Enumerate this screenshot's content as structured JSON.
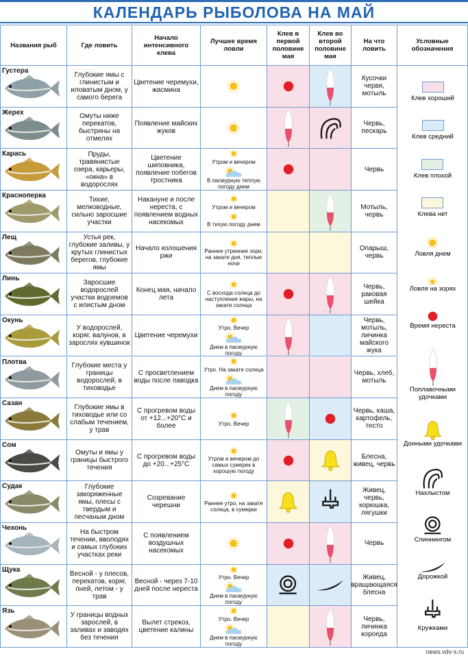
{
  "header": {
    "title": "КАЛЕНДАРЬ РЫБОЛОВА НА МАЙ"
  },
  "table": {
    "columns": [
      "Названия рыб",
      "Где ловить",
      "Начало интенсивного клева",
      "Лучшее время ловли",
      "Клев в первой половине мая",
      "Клев во второй половине мая",
      "На что ловить",
      "Условные обозначения"
    ],
    "rows": [
      {
        "name": "Густера",
        "where": "Глубокие ямы с глинистым и иловатым дном, у самого берега",
        "start": "Цветение черемухи, жасмина",
        "best": [
          {
            "icon": "sun"
          }
        ],
        "first": {
          "color": "#f9dfe8",
          "icon": "dot"
        },
        "second": {
          "color": "#dcebf8",
          "icon": "float"
        },
        "bait": "Кусочки червя, мотыль"
      },
      {
        "name": "Жерех",
        "where": "Омуты ниже перекатов, быстрины на отмелях",
        "start": "Появление майских жуков",
        "best": [
          {
            "icon": "sun"
          }
        ],
        "first": {
          "color": "#f9dfe8",
          "icon": "float"
        },
        "second": {
          "color": "#f9dfe8",
          "icon": "fly"
        },
        "bait": "Червь, пескарь"
      },
      {
        "name": "Карась",
        "where": "Пруды, травянистые озера, карьеры, «окна» в водорослях",
        "start": "Цветение шиповника, появление побегов тростника",
        "best": [
          {
            "icon": "sun",
            "text": "Утром и вечером"
          },
          {
            "icon": "cloud",
            "text": "В пасмурную теплую погоду днем"
          }
        ],
        "first": {
          "color": "#f9dfe8",
          "icon": "dot"
        },
        "second": {
          "color": "#f9dfe8"
        },
        "bait": "Червь"
      },
      {
        "name": "Красноперка",
        "where": "Тихие, мелководные, сильно заросшие участки",
        "start": "Накануне и после нереста, с появлением водных насекомых",
        "best": [
          {
            "icon": "sun",
            "text": "Утром и вечером"
          },
          {
            "icon": "sun",
            "text": "В тихую погоду днем"
          }
        ],
        "first": {
          "color": "#fdf8dc"
        },
        "second": {
          "color": "#e3f1e4",
          "icon": "float"
        },
        "bait": "Мотыль, червь"
      },
      {
        "name": "Лещ",
        "where": "Устья рек, глубокие заливы, у крутых глинистых берегов, глубокие ямы",
        "start": "Начало колошения ржи",
        "best": [
          {
            "icon": "sun",
            "text": "Раннее утренние зори, на закате дня, теплые ночи"
          }
        ],
        "first": {
          "color": "#fdf8dc"
        },
        "second": {
          "color": "#fdf8dc"
        },
        "bait": "Опарыш, червь"
      },
      {
        "name": "Линь",
        "where": "Заросшие водорослей участки водоемов с илистым дном",
        "start": "Конец мая, начало лета",
        "best": [
          {
            "icon": "sun",
            "text": "С восхода солнца до наступления жары, на закате солнца"
          }
        ],
        "first": {
          "color": "#f9dfe8",
          "icon": "dot"
        },
        "second": {
          "color": "#f9dfe8",
          "icon": "float"
        },
        "bait": "Червь, раковая шейка"
      },
      {
        "name": "Окунь",
        "where": "У водорослей, коряг, валунов, в зарослях кувшинок",
        "start": "Цветение черемухи",
        "best": [
          {
            "icon": "sun",
            "text": "Утро. Вечер"
          },
          {
            "icon": "cloud",
            "text": "Днем в пасмурную погоду"
          }
        ],
        "first": {
          "color": "#f9dfe8",
          "icon": "float"
        },
        "second": {
          "color": "#dcebf8"
        },
        "bait": "Червь, мотыль, личинка майского жука"
      },
      {
        "name": "Плотва",
        "where": "Глубокие места у границы водорослей, в тиховодье",
        "start": "С просветлением воды после паводка",
        "best": [
          {
            "icon": "sun",
            "text": "Утро. На закате солнца"
          },
          {
            "icon": "cloud",
            "text": "Днем в пасмурную погоду"
          }
        ],
        "first": {
          "color": "#f9dfe8"
        },
        "second": {
          "color": "#f9dfe8"
        },
        "bait": "Червь, хлеб, мотыль"
      },
      {
        "name": "Сазан",
        "where": "Глубокие ямы в тиховодье или со слабым течением, у трав",
        "start": "С прогревом воды от +12...+20°С и более",
        "best": [
          {
            "icon": "sun",
            "text": "Утро. Вечер"
          }
        ],
        "first": {
          "color": "#e3f1e4",
          "icon": "float"
        },
        "second": {
          "color": "#dcebf8",
          "icon": "dot"
        },
        "bait": "Червь, каша, картофель, тесто"
      },
      {
        "name": "Сом",
        "where": "Омуты и ямы у границы быстрого течения",
        "start": "С прогревом воды до +20...+25°С",
        "best": [
          {
            "icon": "sun",
            "text": "Утром и вечером до самых сумерек в хорошую погоду"
          }
        ],
        "first": {
          "color": "#f9dfe8",
          "icon": "dot"
        },
        "second": {
          "color": "#fdf8dc",
          "icon": "bell"
        },
        "bait": "Блесна, живец, червь"
      },
      {
        "name": "Судак",
        "where": "Глубокие закоряженные ямы, плесы с твердым и песчаным дном",
        "start": "Созревание черешни",
        "best": [
          {
            "icon": "sun",
            "text": "Раннее утро, на закате солнца, в сумерки"
          }
        ],
        "first": {
          "color": "#fdf8dc",
          "icon": "bell"
        },
        "second": {
          "color": "#dcebf8",
          "icon": "cup"
        },
        "bait": "Живец, червь, корюшка, лягушки"
      },
      {
        "name": "Чехонь",
        "where": "На быстром течении, вволодях и самых глубоких участках реки",
        "start": "С появлением воздушных насекомых",
        "best": [
          {
            "icon": "sun"
          }
        ],
        "first": {
          "color": "#f9dfe8",
          "icon": "dot"
        },
        "second": {
          "color": "#f9dfe8",
          "icon": "float"
        },
        "bait": "Червь"
      },
      {
        "name": "Щука",
        "where": "Весной - у плесов, перекатов, коряг, пней, летом - у трав",
        "start": "Весной - через 7-10 дней после нереста",
        "best": [
          {
            "icon": "sun",
            "text": "Утро. Вечер"
          },
          {
            "icon": "cloud",
            "text": "Днем в пасмурную погоду"
          }
        ],
        "first": {
          "color": "#dcebf8",
          "icon": "spin"
        },
        "second": {
          "color": "#dcebf8",
          "icon": "troll"
        },
        "bait": "Живец, вращающаяся блесна"
      },
      {
        "name": "Язь",
        "where": "У границы водных зарослей, в заливах и заводях без течения",
        "start": "Вылет стрекоз, цветение калины",
        "best": [
          {
            "icon": "sun",
            "text": "Утро. Вечер"
          },
          {
            "icon": "cloud",
            "text": "Днем в пасмурную погоду"
          }
        ],
        "first": {
          "color": "#fdf8dc"
        },
        "second": {
          "color": "#f9dfe8",
          "icon": "float"
        },
        "bait": "Червь, личинка короеда"
      }
    ]
  },
  "legend": [
    {
      "label": "Клев хороший",
      "color": "#f9dfe8"
    },
    {
      "label": "Клев средний",
      "color": "#dcebf8"
    },
    {
      "label": "Клев плохой",
      "color": "#e3f1e4"
    },
    {
      "label": "Клева нет",
      "color": "#fdf8dc"
    },
    {
      "label": "Ловля днем",
      "icon": "sun"
    },
    {
      "label": "Ловля на зорях",
      "icon": "dawn"
    },
    {
      "label": "Время нереста",
      "icon": "dot"
    },
    {
      "label": "Поплавочными удочками",
      "icon": "float"
    },
    {
      "label": "Донными удочками",
      "icon": "bell"
    },
    {
      "label": "Нахлыстом",
      "icon": "fly"
    },
    {
      "label": "Спиннингом",
      "icon": "spin"
    },
    {
      "label": "Дорожкой",
      "icon": "troll"
    },
    {
      "label": "Кружками",
      "icon": "cup"
    }
  ],
  "footer": "news.vdv-s.ru"
}
